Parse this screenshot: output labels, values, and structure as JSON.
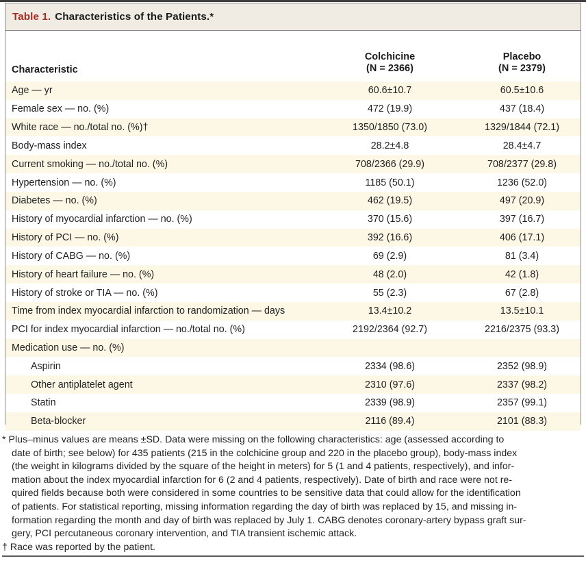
{
  "title": {
    "label": "Table 1.",
    "text": "Characteristics of the Patients.*"
  },
  "table": {
    "characteristic_header": "Characteristic",
    "groups": [
      {
        "name": "Colchicine",
        "n": "(N = 2366)"
      },
      {
        "name": "Placebo",
        "n": "(N = 2379)"
      }
    ],
    "rows": [
      {
        "label": "Age — yr",
        "colchicine": "60.6±10.7",
        "placebo": "60.5±10.6",
        "indent": false
      },
      {
        "label": "Female sex — no. (%)",
        "colchicine": "472 (19.9)",
        "placebo": "437 (18.4)",
        "indent": false
      },
      {
        "label": "White race — no./total no. (%)†",
        "colchicine": "1350/1850 (73.0)",
        "placebo": "1329/1844 (72.1)",
        "indent": false
      },
      {
        "label": "Body-mass index",
        "colchicine": "28.2±4.8",
        "placebo": "28.4±4.7",
        "indent": false
      },
      {
        "label": "Current smoking — no./total no. (%)",
        "colchicine": "708/2366 (29.9)",
        "placebo": "708/2377 (29.8)",
        "indent": false
      },
      {
        "label": "Hypertension — no. (%)",
        "colchicine": "1185 (50.1)",
        "placebo": "1236 (52.0)",
        "indent": false
      },
      {
        "label": "Diabetes — no. (%)",
        "colchicine": "462 (19.5)",
        "placebo": "497 (20.9)",
        "indent": false
      },
      {
        "label": "History of myocardial infarction — no. (%)",
        "colchicine": "370 (15.6)",
        "placebo": "397 (16.7)",
        "indent": false
      },
      {
        "label": "History of PCI — no. (%)",
        "colchicine": "392 (16.6)",
        "placebo": "406 (17.1)",
        "indent": false
      },
      {
        "label": "History of CABG — no. (%)",
        "colchicine": "69 (2.9)",
        "placebo": "81 (3.4)",
        "indent": false
      },
      {
        "label": "History of heart failure — no. (%)",
        "colchicine": "48 (2.0)",
        "placebo": "42 (1.8)",
        "indent": false
      },
      {
        "label": "History of stroke or TIA — no. (%)",
        "colchicine": "55 (2.3)",
        "placebo": "67 (2.8)",
        "indent": false
      },
      {
        "label": "Time from index myocardial infarction to randomization — days",
        "colchicine": "13.4±10.2",
        "placebo": "13.5±10.1",
        "indent": false
      },
      {
        "label": "PCI for index myocardial infarction — no./total no. (%)",
        "colchicine": "2192/2364 (92.7)",
        "placebo": "2216/2375 (93.3)",
        "indent": false
      },
      {
        "label": "Medication use — no. (%)",
        "colchicine": "",
        "placebo": "",
        "indent": false
      },
      {
        "label": "Aspirin",
        "colchicine": "2334 (98.6)",
        "placebo": "2352 (98.9)",
        "indent": true
      },
      {
        "label": "Other antiplatelet agent",
        "colchicine": "2310 (97.6)",
        "placebo": "2337 (98.2)",
        "indent": true
      },
      {
        "label": "Statin",
        "colchicine": "2339 (98.9)",
        "placebo": "2357 (99.1)",
        "indent": true
      },
      {
        "label": "Beta-blocker",
        "colchicine": "2116 (89.4)",
        "placebo": "2101 (88.3)",
        "indent": true
      }
    ]
  },
  "footnotes": [
    {
      "marker": "*",
      "text": "Plus–minus values are means ±SD. Data were missing on the following characteristics: age (assessed according to\ndate of birth; see below) for 435 patients (215 in the colchicine group and 220 in the placebo group), body-mass index\n(the weight in kilograms divided by the square of the height in meters) for 5 (1 and 4 patients, respectively), and infor-\nmation about the index myocardial infarction for 6 (2 and 4 patients, respectively). Date of birth and race were not re-\nquired fields because both were considered in some countries to be sensitive data that could allow for the identification\nof patients. For statistical reporting, missing information regarding the day of birth was replaced by 15, and missing in-\nformation regarding the month and day of birth was replaced by July 1. CABG denotes coronary-artery bypass graft sur-\ngery, PCI percutaneous coronary intervention, and TIA transient ischemic attack."
    },
    {
      "marker": "†",
      "text": "Race was reported by the patient."
    }
  ],
  "colors": {
    "accent_red": "#a62c22",
    "row_shade": "#fdf7e5",
    "titlebar_bg": "#f0ece3",
    "border_gray": "#8a8a8a"
  }
}
